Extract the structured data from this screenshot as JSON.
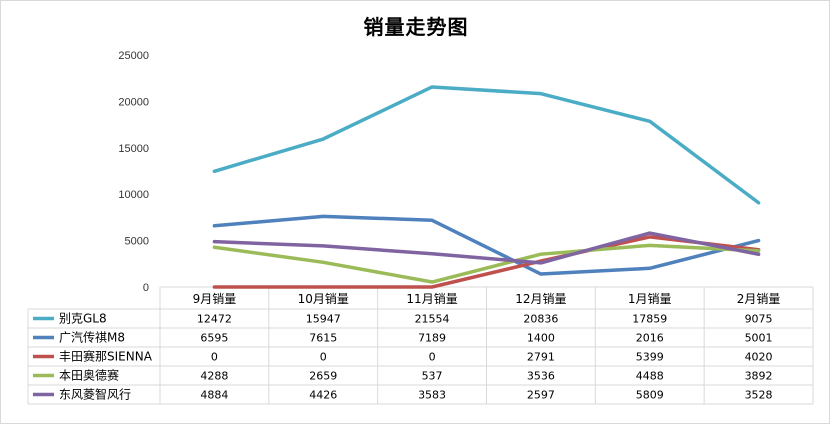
{
  "chart_data": {
    "type": "line",
    "title": "销量走势图",
    "categories": [
      "9月销量",
      "10月销量",
      "11月销量",
      "12月销量",
      "1月销量",
      "2月销量"
    ],
    "ylim": [
      0,
      25000
    ],
    "yticks": [
      0,
      5000,
      10000,
      15000,
      20000,
      25000
    ],
    "grid": false,
    "legend": "data-table-left",
    "series": [
      {
        "name": "别克GL8",
        "color": "#4bacc6",
        "values": [
          12472,
          15947,
          21554,
          20836,
          17859,
          9075
        ]
      },
      {
        "name": "广汽传祺M8",
        "color": "#4f81bd",
        "values": [
          6595,
          7615,
          7189,
          1400,
          2016,
          5001
        ]
      },
      {
        "name": "丰田赛那SIENNA",
        "color": "#c0504d",
        "values": [
          0,
          0,
          0,
          2791,
          5399,
          4020
        ]
      },
      {
        "name": "本田奥德赛",
        "color": "#9bbb59",
        "values": [
          4288,
          2659,
          537,
          3536,
          4488,
          3892
        ]
      },
      {
        "name": "东风菱智风行",
        "color": "#8064a2",
        "values": [
          4884,
          4426,
          3583,
          2597,
          5809,
          3528
        ]
      }
    ]
  }
}
